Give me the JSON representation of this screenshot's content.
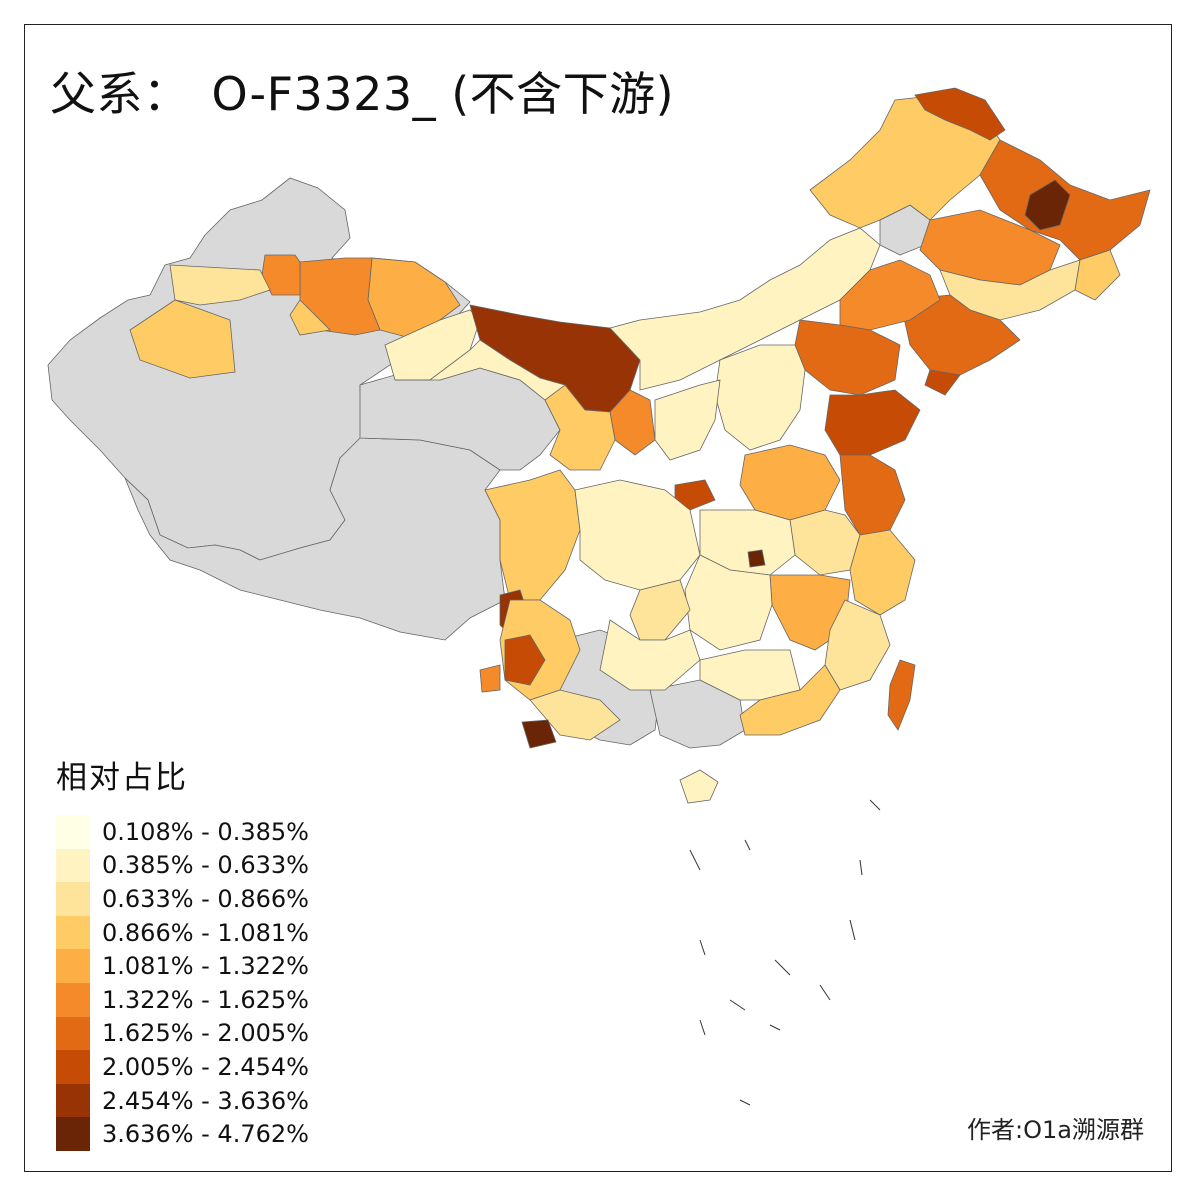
{
  "title": {
    "prefix": "父系：",
    "main": "O-F3323_ (不含下游)"
  },
  "legend": {
    "title": "相对占比",
    "items": [
      {
        "label": "0.108% - 0.385%",
        "color": "#FFFFE5"
      },
      {
        "label": "0.385% - 0.633%",
        "color": "#FFF4C1"
      },
      {
        "label": "0.633% - 0.866%",
        "color": "#FEE39A"
      },
      {
        "label": "0.866% - 1.081%",
        "color": "#FECB65"
      },
      {
        "label": "1.081% - 1.322%",
        "color": "#FDAE45"
      },
      {
        "label": "1.322% - 1.625%",
        "color": "#F58A2A"
      },
      {
        "label": "1.625% - 2.005%",
        "color": "#E36A14"
      },
      {
        "label": "2.005% - 2.454%",
        "color": "#C64C06"
      },
      {
        "label": "2.454% - 3.636%",
        "color": "#973304"
      },
      {
        "label": "3.636% - 4.762%",
        "color": "#6A2506"
      }
    ]
  },
  "no_data_color": "#D9D9D9",
  "credit": "作者:O1a溯源群"
}
